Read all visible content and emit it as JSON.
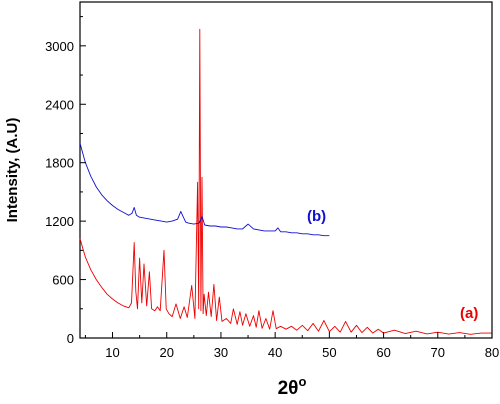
{
  "chart_data": {
    "type": "line",
    "xlabel": "2θ",
    "xlabel_superscript": "o",
    "ylabel": "Intensity, (A.U)",
    "xlim": [
      4,
      80
    ],
    "ylim": [
      0,
      3450
    ],
    "x_ticks": [
      10,
      20,
      30,
      40,
      50,
      60,
      70,
      80
    ],
    "y_ticks": [
      0,
      600,
      1200,
      1800,
      2400,
      3000
    ],
    "grid": false,
    "series": [
      {
        "name": "(a)",
        "color": "#ee0000",
        "x": [
          4,
          5,
          6,
          7,
          8,
          9,
          10,
          11,
          12,
          13,
          13.5,
          14,
          14.3,
          14.6,
          15,
          15.4,
          15.8,
          16.3,
          16.8,
          17.2,
          17.8,
          18.3,
          18.8,
          19.5,
          19.9,
          20.4,
          21,
          21.7,
          22.5,
          23.2,
          23.8,
          24.6,
          25.2,
          25.7,
          25.9,
          26.1,
          26.3,
          26.5,
          26.7,
          26.9,
          27.3,
          27.7,
          28.2,
          28.7,
          29.2,
          29.7,
          30.2,
          31,
          31.8,
          32.3,
          33,
          33.5,
          34,
          34.6,
          35.3,
          36,
          36.5,
          37,
          37.6,
          38.3,
          39,
          39.6,
          40.2,
          41,
          42,
          43,
          44,
          45,
          46,
          47,
          48,
          49,
          50,
          51,
          52,
          53,
          54,
          55,
          56,
          57,
          58,
          59,
          60,
          62,
          64,
          66,
          68,
          70,
          72,
          74,
          76,
          78,
          80
        ],
        "values": [
          1020,
          830,
          700,
          600,
          520,
          450,
          400,
          360,
          330,
          310,
          360,
          980,
          480,
          300,
          820,
          360,
          760,
          330,
          680,
          300,
          280,
          320,
          280,
          900,
          300,
          250,
          220,
          350,
          200,
          320,
          210,
          540,
          200,
          1600,
          300,
          3170,
          280,
          1650,
          250,
          450,
          230,
          470,
          220,
          550,
          180,
          420,
          170,
          200,
          150,
          300,
          140,
          270,
          130,
          250,
          120,
          230,
          110,
          280,
          100,
          200,
          90,
          280,
          95,
          120,
          90,
          120,
          80,
          130,
          75,
          150,
          70,
          180,
          65,
          120,
          60,
          170,
          60,
          130,
          55,
          110,
          50,
          90,
          50,
          80,
          45,
          70,
          42,
          60,
          40,
          55,
          38,
          50,
          50
        ]
      },
      {
        "name": "(b)",
        "color": "#1010d0",
        "x": [
          4,
          5,
          6,
          7,
          8,
          9,
          10,
          11,
          12,
          13,
          13.6,
          14,
          14.4,
          15,
          16,
          17,
          18,
          19,
          20,
          21,
          22,
          22.6,
          23,
          23.5,
          24,
          25,
          26,
          26.5,
          27,
          28,
          29,
          30,
          31,
          32,
          33,
          34,
          35,
          36,
          37,
          38,
          39,
          40,
          40.5,
          41,
          42,
          43,
          44,
          45,
          46,
          47,
          48,
          49,
          50
        ],
        "values": [
          2000,
          1800,
          1660,
          1550,
          1470,
          1410,
          1360,
          1320,
          1290,
          1260,
          1280,
          1340,
          1260,
          1240,
          1230,
          1220,
          1210,
          1200,
          1190,
          1200,
          1220,
          1300,
          1250,
          1190,
          1180,
          1170,
          1180,
          1250,
          1160,
          1150,
          1150,
          1140,
          1140,
          1130,
          1120,
          1120,
          1170,
          1120,
          1110,
          1100,
          1100,
          1100,
          1130,
          1090,
          1090,
          1080,
          1080,
          1070,
          1070,
          1060,
          1060,
          1050,
          1050
        ]
      }
    ]
  }
}
